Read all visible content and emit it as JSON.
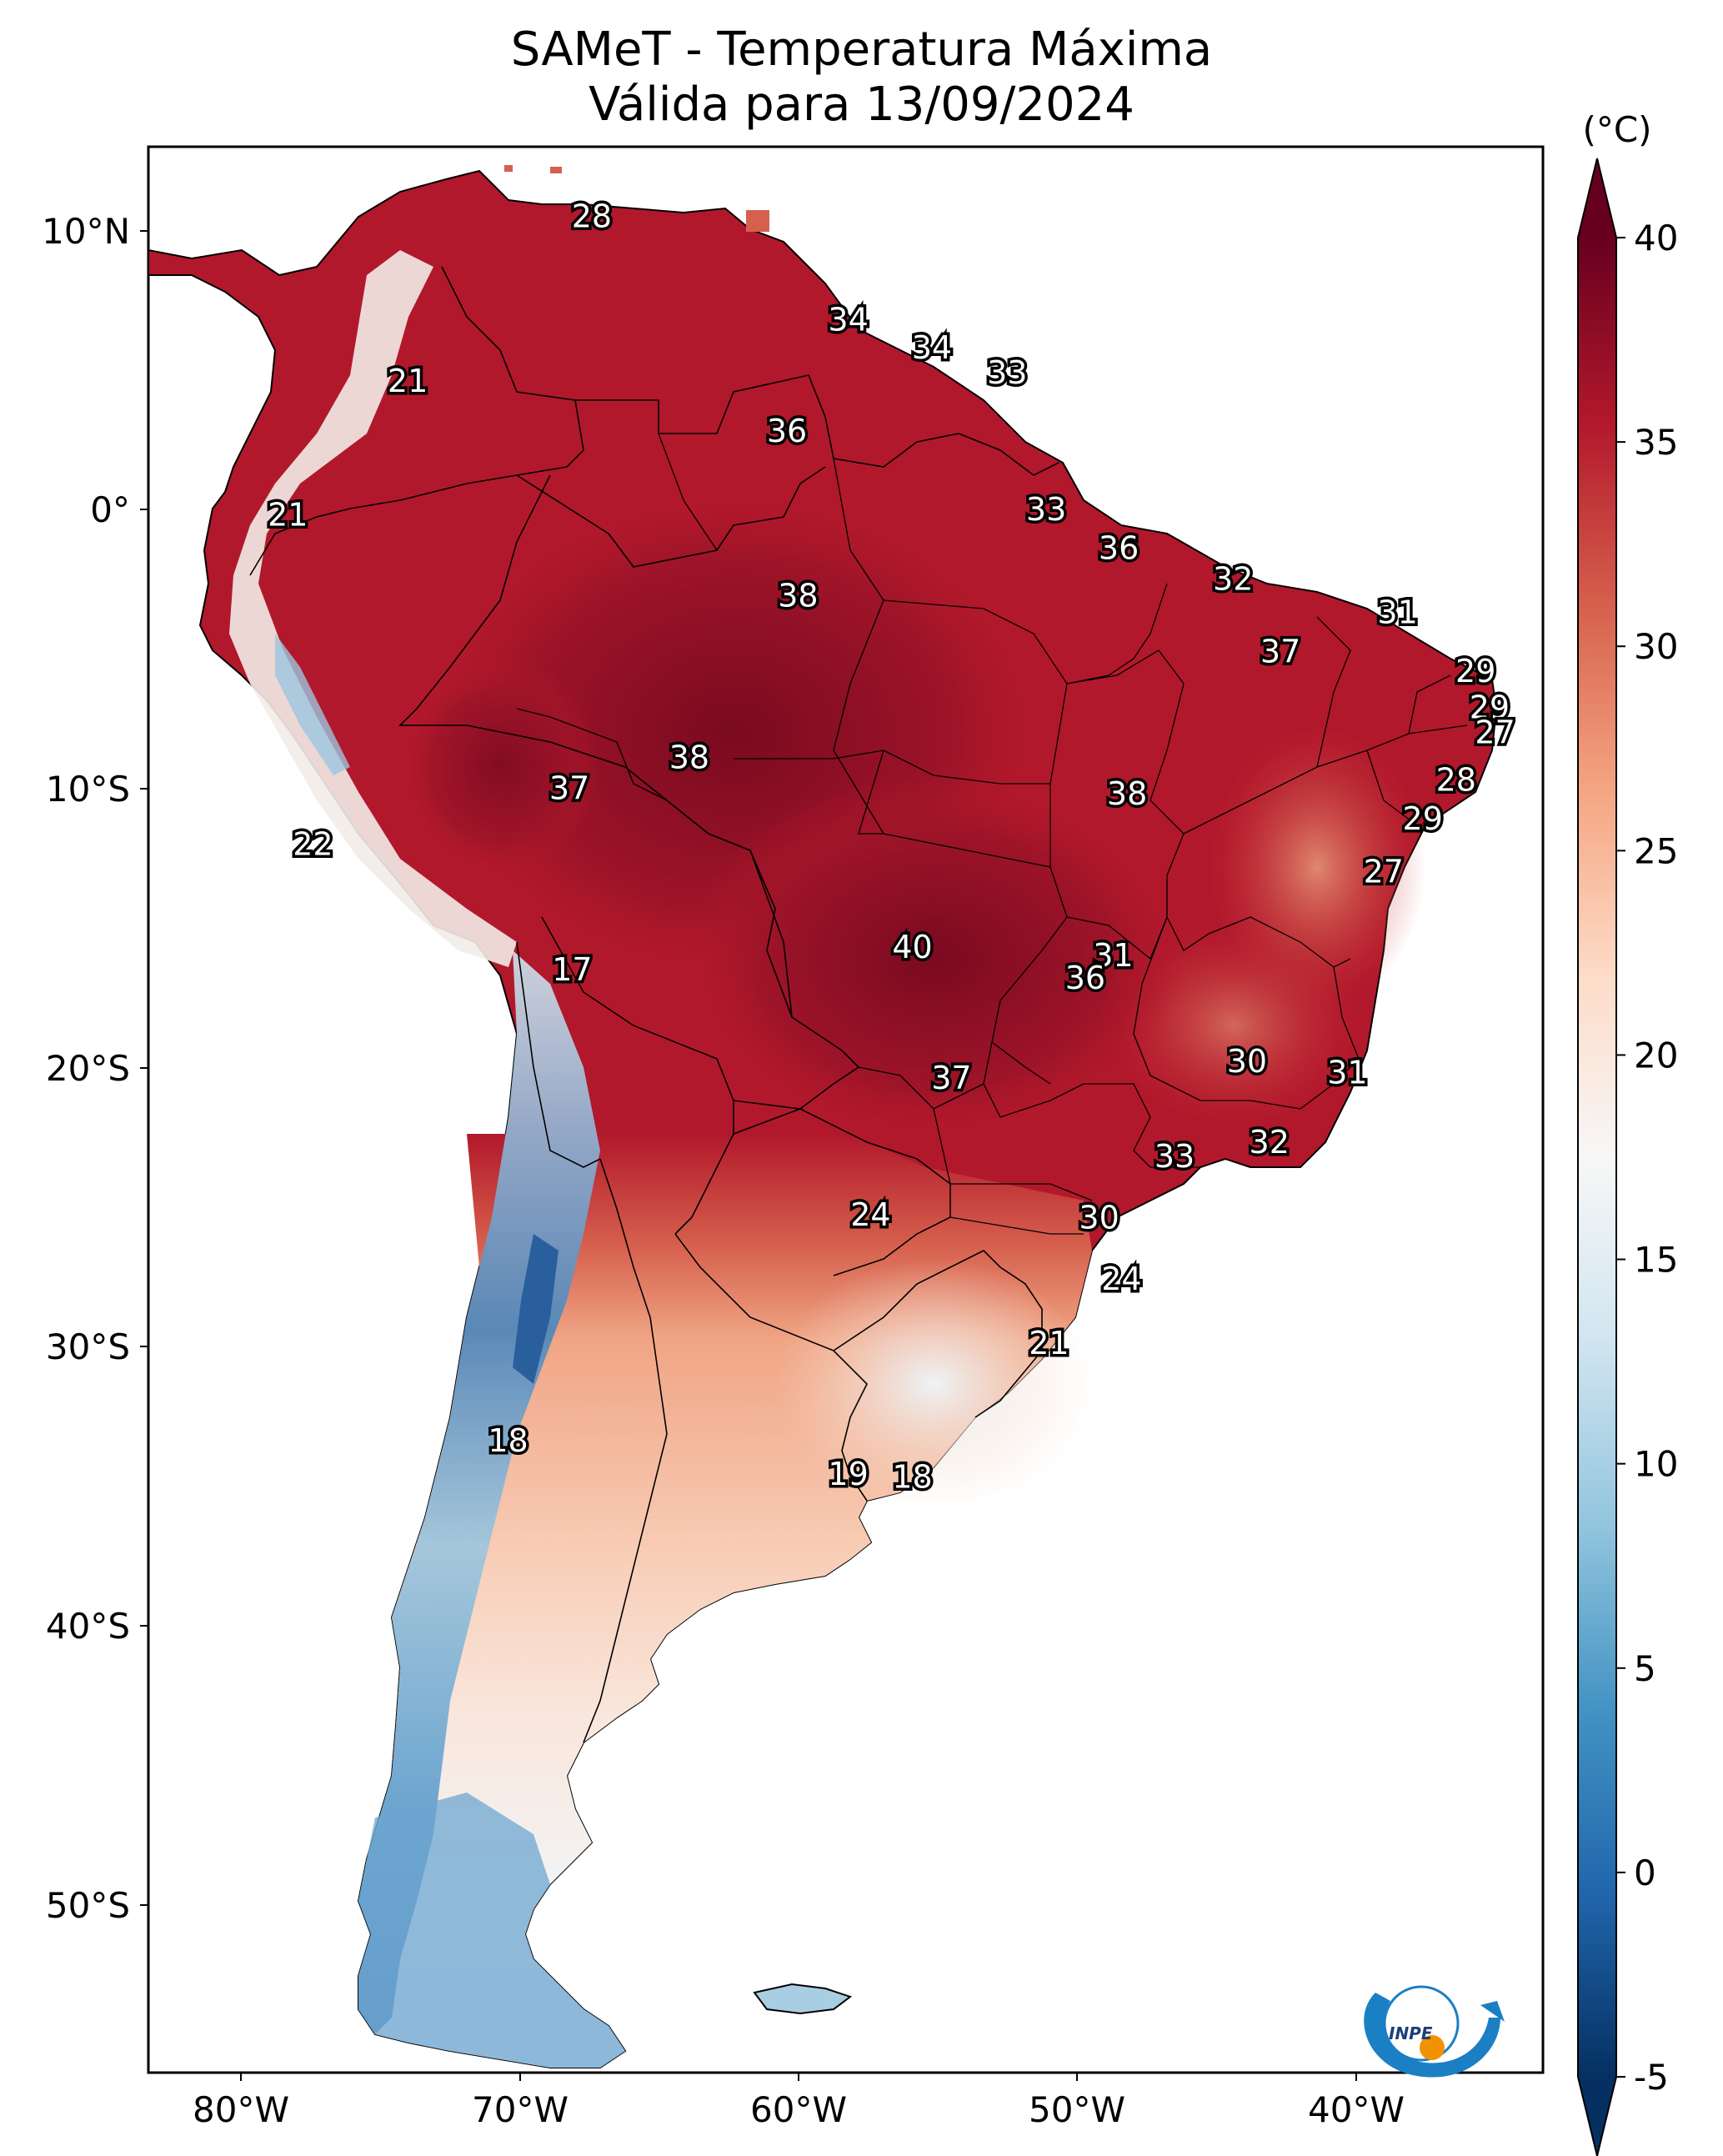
{
  "title": "SAMeT - Temperatura Máxima",
  "subtitle": "Válida para 13/09/2024",
  "colorbar": {
    "unit": "(°C)",
    "min": -5,
    "max": 40,
    "ticks": [
      "40",
      "35",
      "30",
      "25",
      "20",
      "15",
      "10",
      "5",
      "0",
      "-5"
    ],
    "stops": [
      "#053061",
      "#2166ac",
      "#4393c3",
      "#92c5de",
      "#d1e5f0",
      "#f7f7f7",
      "#fddbc7",
      "#f4a582",
      "#d6604d",
      "#b2182b",
      "#67001f"
    ]
  },
  "lat_ticks": [
    "10°N",
    "0°",
    "10°S",
    "20°S",
    "30°S",
    "40°S",
    "50°S"
  ],
  "lon_ticks": [
    "80°W",
    "70°W",
    "60°W",
    "50°W",
    "40°W"
  ],
  "logo": {
    "text": "INPE"
  },
  "point_labels": [
    {
      "value": "28",
      "lon": -67.4,
      "lat": 10.5
    },
    {
      "value": "34",
      "lon": -58.2,
      "lat": 6.8
    },
    {
      "value": "34",
      "lon": -55.2,
      "lat": 5.8
    },
    {
      "value": "33",
      "lon": -52.5,
      "lat": 4.9
    },
    {
      "value": "21",
      "lon": -74.0,
      "lat": 4.6
    },
    {
      "value": "36",
      "lon": -60.4,
      "lat": 2.8
    },
    {
      "value": "21",
      "lon": -78.3,
      "lat": -0.2
    },
    {
      "value": "33",
      "lon": -51.1,
      "lat": 0.0
    },
    {
      "value": "36",
      "lon": -48.5,
      "lat": -1.4
    },
    {
      "value": "32",
      "lon": -44.4,
      "lat": -2.5
    },
    {
      "value": "38",
      "lon": -60.0,
      "lat": -3.1
    },
    {
      "value": "31",
      "lon": -38.5,
      "lat": -3.7
    },
    {
      "value": "37",
      "lon": -42.7,
      "lat": -5.1
    },
    {
      "value": "29",
      "lon": -35.7,
      "lat": -5.8
    },
    {
      "value": "29",
      "lon": -35.2,
      "lat": -7.1
    },
    {
      "value": "27",
      "lon": -35.0,
      "lat": -8.0
    },
    {
      "value": "38",
      "lon": -63.9,
      "lat": -8.9
    },
    {
      "value": "28",
      "lon": -36.4,
      "lat": -9.7
    },
    {
      "value": "37",
      "lon": -68.2,
      "lat": -10.0
    },
    {
      "value": "38",
      "lon": -48.2,
      "lat": -10.2
    },
    {
      "value": "29",
      "lon": -37.6,
      "lat": -11.1
    },
    {
      "value": "22",
      "lon": -77.4,
      "lat": -12.0
    },
    {
      "value": "27",
      "lon": -39.0,
      "lat": -13.0
    },
    {
      "value": "40",
      "lon": -55.9,
      "lat": -15.7
    },
    {
      "value": "31",
      "lon": -48.7,
      "lat": -16.0
    },
    {
      "value": "36",
      "lon": -49.7,
      "lat": -16.8
    },
    {
      "value": "17",
      "lon": -68.1,
      "lat": -16.5
    },
    {
      "value": "30",
      "lon": -43.9,
      "lat": -19.8
    },
    {
      "value": "31",
      "lon": -40.3,
      "lat": -20.2
    },
    {
      "value": "37",
      "lon": -54.5,
      "lat": -20.4
    },
    {
      "value": "32",
      "lon": -43.1,
      "lat": -22.7
    },
    {
      "value": "33",
      "lon": -46.5,
      "lat": -23.2
    },
    {
      "value": "24",
      "lon": -57.4,
      "lat": -25.3
    },
    {
      "value": "30",
      "lon": -49.2,
      "lat": -25.4
    },
    {
      "value": "24",
      "lon": -48.4,
      "lat": -27.6
    },
    {
      "value": "21",
      "lon": -51.0,
      "lat": -29.9
    },
    {
      "value": "18",
      "lon": -70.4,
      "lat": -33.4
    },
    {
      "value": "19",
      "lon": -58.2,
      "lat": -34.6
    },
    {
      "value": "18",
      "lon": -55.9,
      "lat": -34.7
    }
  ]
}
